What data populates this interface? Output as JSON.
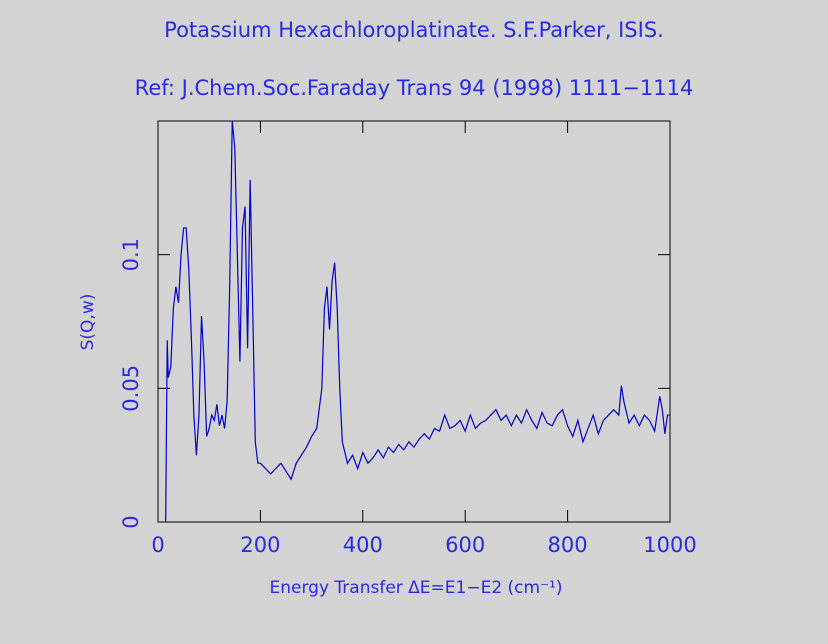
{
  "chart_data": {
    "type": "line",
    "title": "Potassium Hexachloroplatinate. S.F.Parker, ISIS.",
    "subtitle": "Ref: J.Chem.Soc.Faraday Trans 94 (1998) 1111−1114",
    "xlabel": "Energy Transfer ΔE=E1−E2 (cm⁻¹)",
    "ylabel": "S(Q,w)",
    "xlim": [
      0,
      1000
    ],
    "ylim": [
      0,
      0.15
    ],
    "xticks": [
      0,
      200,
      400,
      600,
      800,
      1000
    ],
    "yticks": [
      0,
      0.05,
      0.1
    ],
    "series": [
      {
        "color": "#0000c8",
        "x": [
          15,
          18,
          20,
          25,
          30,
          35,
          40,
          45,
          50,
          55,
          60,
          65,
          70,
          75,
          80,
          85,
          90,
          95,
          100,
          105,
          110,
          115,
          120,
          125,
          130,
          135,
          140,
          145,
          150,
          155,
          160,
          165,
          170,
          175,
          180,
          185,
          190,
          195,
          200,
          210,
          220,
          230,
          240,
          250,
          260,
          270,
          280,
          290,
          300,
          310,
          320,
          325,
          330,
          335,
          340,
          345,
          350,
          355,
          360,
          370,
          380,
          390,
          400,
          410,
          420,
          430,
          440,
          450,
          460,
          470,
          480,
          490,
          500,
          510,
          520,
          530,
          540,
          550,
          560,
          570,
          580,
          590,
          600,
          610,
          620,
          630,
          640,
          650,
          660,
          670,
          680,
          690,
          700,
          710,
          720,
          730,
          740,
          750,
          760,
          770,
          780,
          790,
          800,
          810,
          820,
          830,
          840,
          850,
          860,
          870,
          880,
          890,
          900,
          905,
          910,
          920,
          930,
          940,
          950,
          960,
          970,
          980,
          985,
          990,
          995,
          1000
        ],
        "values": [
          0,
          0.068,
          0.054,
          0.058,
          0.08,
          0.088,
          0.082,
          0.1,
          0.11,
          0.11,
          0.095,
          0.07,
          0.04,
          0.025,
          0.04,
          0.077,
          0.06,
          0.032,
          0.035,
          0.04,
          0.038,
          0.044,
          0.036,
          0.04,
          0.035,
          0.045,
          0.088,
          0.15,
          0.14,
          0.1,
          0.06,
          0.11,
          0.118,
          0.065,
          0.128,
          0.08,
          0.03,
          0.022,
          0.022,
          0.02,
          0.018,
          0.02,
          0.022,
          0.019,
          0.016,
          0.022,
          0.025,
          0.028,
          0.032,
          0.035,
          0.05,
          0.08,
          0.088,
          0.072,
          0.09,
          0.097,
          0.08,
          0.05,
          0.03,
          0.022,
          0.025,
          0.02,
          0.026,
          0.022,
          0.024,
          0.027,
          0.024,
          0.028,
          0.026,
          0.029,
          0.027,
          0.03,
          0.028,
          0.031,
          0.033,
          0.031,
          0.035,
          0.034,
          0.04,
          0.035,
          0.036,
          0.038,
          0.034,
          0.04,
          0.035,
          0.037,
          0.038,
          0.04,
          0.042,
          0.038,
          0.04,
          0.036,
          0.04,
          0.037,
          0.042,
          0.038,
          0.035,
          0.041,
          0.037,
          0.036,
          0.04,
          0.042,
          0.036,
          0.032,
          0.038,
          0.03,
          0.035,
          0.04,
          0.033,
          0.038,
          0.04,
          0.042,
          0.04,
          0.051,
          0.045,
          0.037,
          0.04,
          0.036,
          0.04,
          0.038,
          0.034,
          0.047,
          0.042,
          0.033,
          0.04,
          0.04
        ]
      }
    ]
  }
}
